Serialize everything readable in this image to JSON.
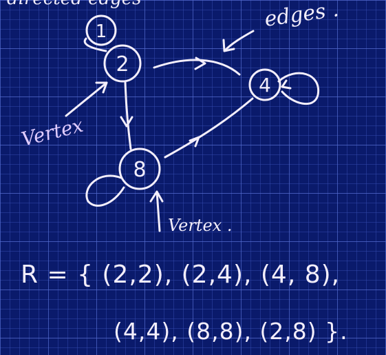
{
  "heading_partial": "directed edges",
  "graph": {
    "vertices": [
      "1",
      "2",
      "4",
      "8"
    ]
  },
  "labels": {
    "edges": "edges .",
    "vertex_left": "Vertex",
    "vertex_bottom": "Vertex ."
  },
  "relation": {
    "line1": "R = { (2,2), (2,4), (4, 8),",
    "line2": "(4,4), (8,8), (2,8) }."
  },
  "colors": {
    "board": "#0a1a6b",
    "grid": "#3f57c0",
    "chalk": "#f3eefb",
    "chalk_lilac": "#e0ccff"
  }
}
